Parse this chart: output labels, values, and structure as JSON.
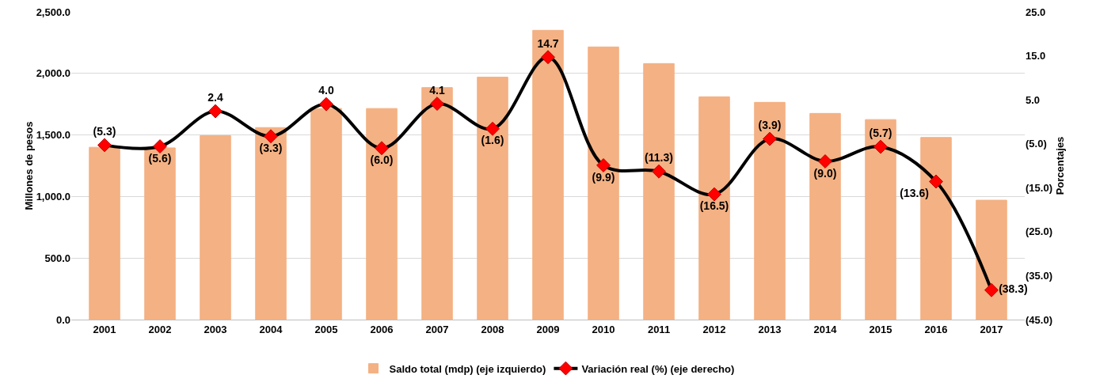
{
  "chart_data": {
    "type": "bar",
    "categories": [
      "2001",
      "2002",
      "2003",
      "2004",
      "2005",
      "2006",
      "2007",
      "2008",
      "2009",
      "2010",
      "2011",
      "2012",
      "2013",
      "2014",
      "2015",
      "2016",
      "2017"
    ],
    "ylabel": "Millones de pesos",
    "y2label": "Porcentajes",
    "ylim": [
      0,
      2500
    ],
    "yticks": [
      {
        "value": 0,
        "label": "0.0"
      },
      {
        "value": 500,
        "label": "500.0"
      },
      {
        "value": 1000,
        "label": "1,000.0"
      },
      {
        "value": 1500,
        "label": "1,500.0"
      },
      {
        "value": 2000,
        "label": "2,000.0"
      },
      {
        "value": 2500,
        "label": "2,500.0"
      }
    ],
    "y2lim": [
      -45,
      25
    ],
    "y2ticks": [
      {
        "value": -45,
        "label": "(45.0)"
      },
      {
        "value": -35,
        "label": "(35.0)"
      },
      {
        "value": -25,
        "label": "(25.0)"
      },
      {
        "value": -15,
        "label": "(15.0)"
      },
      {
        "value": -5,
        "label": "(5.0)"
      },
      {
        "value": 5,
        "label": "5.0"
      },
      {
        "value": 15,
        "label": "15.0"
      },
      {
        "value": 25,
        "label": "25.0"
      }
    ],
    "grid": "y",
    "legend": "bottom",
    "series": [
      {
        "name": "Saldo total (mdp) (eje izquierdo)",
        "color": "#f4b183",
        "values": [
          1400,
          1395,
          1495,
          1560,
          1715,
          1715,
          1885,
          1970,
          2350,
          2215,
          2080,
          1810,
          1765,
          1675,
          1625,
          1480,
          970
        ]
      },
      {
        "name": "Variación real (%) (eje derecho)",
        "type": "line",
        "axis": "y2",
        "color": "#000000",
        "marker": "diamond",
        "line_style": "solid",
        "values": [
          -5.3,
          -5.6,
          2.4,
          -3.3,
          4.0,
          -6.0,
          4.1,
          -1.6,
          14.7,
          -9.9,
          -11.3,
          -16.5,
          -3.9,
          -9.0,
          -5.7,
          -13.6,
          -38.3
        ],
        "value_labels": [
          "(5.3)",
          "(5.6)",
          "2.4",
          "(3.3)",
          "4.0",
          "(6.0)",
          "4.1",
          "(1.6)",
          "14.7",
          "(9.9)",
          "(11.3)",
          "(16.5)",
          "(3.9)",
          "(9.0)",
          "(5.7)",
          "(13.6)",
          "(38.3)"
        ]
      }
    ]
  }
}
